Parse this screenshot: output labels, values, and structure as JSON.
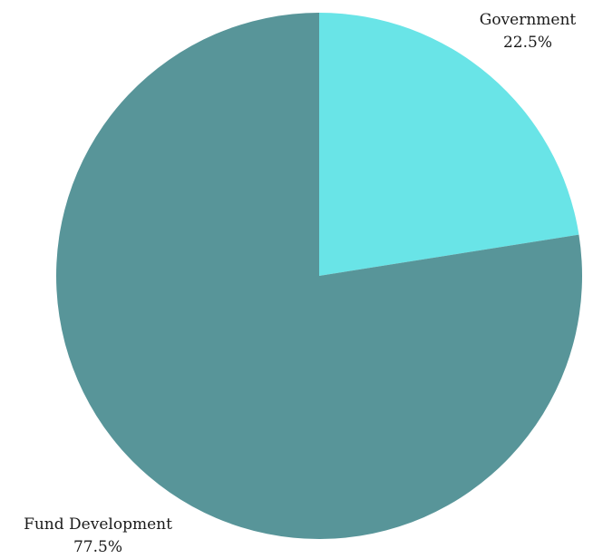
{
  "chart_data": {
    "type": "pie",
    "title": "",
    "start_angle_deg": 0,
    "direction": "clockwise",
    "slices": [
      {
        "label": "Government",
        "value": 22.5,
        "display": "22.5%",
        "color": "#69E4E7"
      },
      {
        "label": "Fund Development",
        "value": 77.5,
        "display": "77.5%",
        "color": "#589599"
      }
    ],
    "legend": "none",
    "labels": "outside, name above percentage"
  }
}
